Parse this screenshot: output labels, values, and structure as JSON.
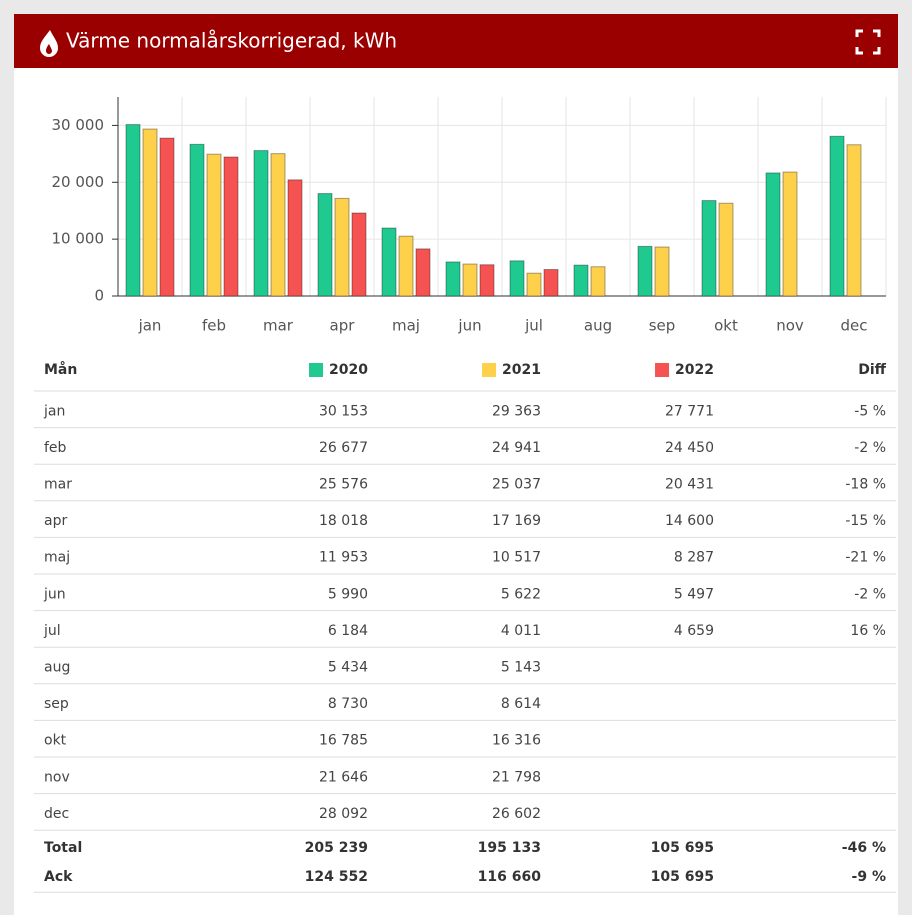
{
  "chart_data": {
    "type": "bar",
    "title": "Värme normalårskorrigerad, kWh",
    "categories": [
      "jan",
      "feb",
      "mar",
      "apr",
      "maj",
      "jun",
      "jul",
      "aug",
      "sep",
      "okt",
      "nov",
      "dec"
    ],
    "series": [
      {
        "name": "2020",
        "color": "#1fc98f",
        "values": [
          30153,
          26677,
          25576,
          18018,
          11953,
          5990,
          6184,
          5434,
          8730,
          16785,
          21646,
          28092
        ],
        "value_labels": [
          "30 153",
          "26 677",
          "25 576",
          "18 018",
          "11 953",
          "5 990",
          "6 184",
          "5 434",
          "8 730",
          "16 785",
          "21 646",
          "28 092"
        ]
      },
      {
        "name": "2021",
        "color": "#ffd04a",
        "values": [
          29363,
          24941,
          25037,
          17169,
          10517,
          5622,
          4011,
          5143,
          8614,
          16316,
          21798,
          26602
        ],
        "value_labels": [
          "29 363",
          "24 941",
          "25 037",
          "17 169",
          "10 517",
          "5 622",
          "4 011",
          "5 143",
          "8 614",
          "16 316",
          "21 798",
          "26 602"
        ]
      },
      {
        "name": "2022",
        "color": "#f55252",
        "values": [
          27771,
          24450,
          20431,
          14600,
          8287,
          5497,
          4659,
          null,
          null,
          null,
          null,
          null
        ],
        "value_labels": [
          "27 771",
          "24 450",
          "20 431",
          "14 600",
          "8 287",
          "5 497",
          "4 659",
          null,
          null,
          null,
          null,
          null
        ]
      }
    ],
    "ylim": [
      0,
      35000
    ],
    "yticks": [
      0,
      {
        "value": 10000,
        "label": "10 000"
      },
      {
        "value": 20000,
        "label": "20 000"
      },
      {
        "value": 30000,
        "label": "30 000"
      }
    ],
    "grid": true
  },
  "table": {
    "header": {
      "month": "Mån",
      "diff": "Diff"
    },
    "diff": [
      "-5 %",
      "-2 %",
      "-18 %",
      "-15 %",
      "-21 %",
      "-2 %",
      "16 %",
      null,
      null,
      null,
      null,
      null
    ],
    "summary": [
      {
        "label": "Total",
        "values": [
          "205 239",
          "195 133",
          "105 695"
        ],
        "diff": "-46 %"
      },
      {
        "label": "Ack",
        "values": [
          "124 552",
          "116 660",
          "105 695"
        ],
        "diff": "-9 %"
      }
    ]
  }
}
